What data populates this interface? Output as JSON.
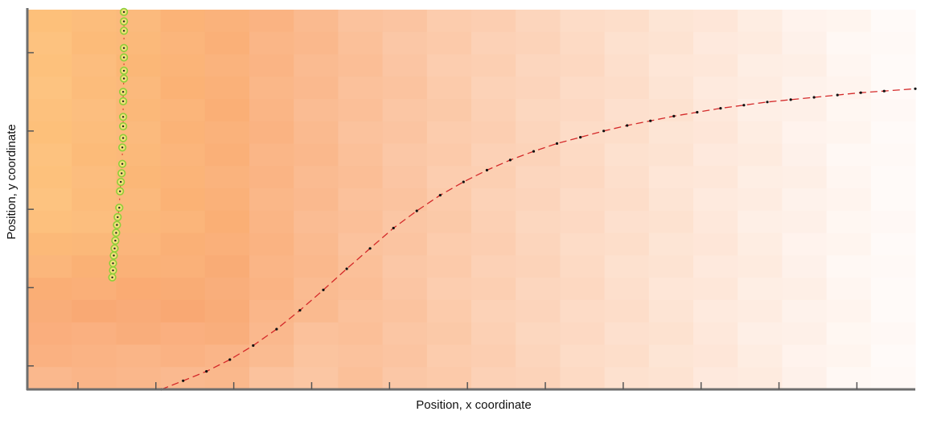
{
  "chart_data": {
    "type": "scatter",
    "title": "",
    "xlabel": "Position, x coordinate",
    "ylabel": "Position, y coordinate",
    "xlim": [
      0,
      11.4
    ],
    "ylim": [
      0,
      4.85
    ],
    "x_ticks": [
      0.65,
      1.65,
      2.65,
      3.65,
      4.65,
      5.65,
      6.65,
      7.65,
      8.65,
      9.65,
      10.65
    ],
    "y_ticks": [
      0.3,
      1.3,
      2.3,
      3.3,
      4.3
    ],
    "grid": false,
    "tick_labels_shown": false,
    "background_heatmap": {
      "type": "heatmap",
      "cols": 20,
      "rows": 17,
      "color_low": "#fffaf8",
      "color_mid": "#f9a771",
      "color_high": "#fdc27b"
    },
    "series": [
      {
        "style": "green-circle-markers",
        "color": "#8ecf3a",
        "x": [
          1.24,
          1.24,
          1.24,
          1.24,
          1.24,
          1.24,
          1.24,
          1.23,
          1.23,
          1.23,
          1.23,
          1.23,
          1.22,
          1.22,
          1.21,
          1.2,
          1.19,
          1.18,
          1.16,
          1.15,
          1.14,
          1.13,
          1.12,
          1.11,
          1.1,
          1.1,
          1.09
        ],
        "y": [
          4.82,
          4.7,
          4.58,
          4.36,
          4.24,
          4.07,
          3.97,
          3.8,
          3.68,
          3.48,
          3.36,
          3.21,
          3.09,
          2.88,
          2.76,
          2.65,
          2.53,
          2.32,
          2.2,
          2.1,
          2.0,
          1.9,
          1.8,
          1.71,
          1.61,
          1.52,
          1.43
        ]
      },
      {
        "style": "red-dashed-line-with-black-dots",
        "color": "#d42a2a",
        "x": [
          1.72,
          2.0,
          2.3,
          2.6,
          2.9,
          3.2,
          3.5,
          3.8,
          4.1,
          4.4,
          4.7,
          5.0,
          5.3,
          5.6,
          5.9,
          6.2,
          6.5,
          6.8,
          7.1,
          7.4,
          7.7,
          8.0,
          8.3,
          8.6,
          8.9,
          9.2,
          9.5,
          9.8,
          10.1,
          10.4,
          10.7,
          11.0,
          11.4
        ],
        "y": [
          0.0,
          0.11,
          0.23,
          0.38,
          0.56,
          0.77,
          1.01,
          1.27,
          1.54,
          1.8,
          2.06,
          2.28,
          2.48,
          2.65,
          2.8,
          2.93,
          3.04,
          3.14,
          3.22,
          3.3,
          3.37,
          3.43,
          3.49,
          3.54,
          3.59,
          3.63,
          3.67,
          3.7,
          3.73,
          3.76,
          3.79,
          3.81,
          3.84
        ]
      }
    ]
  }
}
